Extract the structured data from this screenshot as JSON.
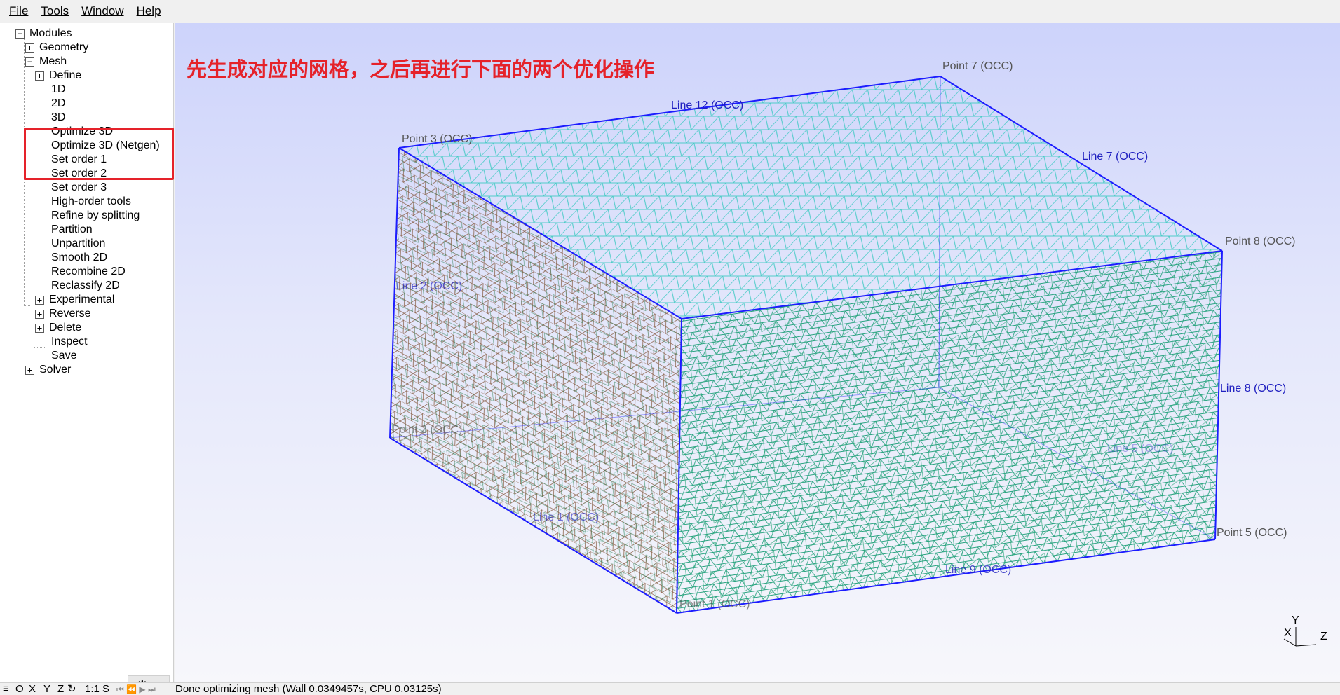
{
  "menu": {
    "file": "File",
    "tools": "Tools",
    "window": "Window",
    "help": "Help"
  },
  "tree": {
    "modules": "Modules",
    "geometry": "Geometry",
    "mesh": "Mesh",
    "define": "Define",
    "mesh_items": [
      "1D",
      "2D",
      "3D",
      "Optimize 3D",
      "Optimize 3D (Netgen)",
      "Set order 1",
      "Set order 2",
      "Set order 3",
      "High-order tools",
      "Refine by splitting",
      "Partition",
      "Unpartition",
      "Smooth 2D",
      "Recombine 2D",
      "Reclassify 2D"
    ],
    "experimental": "Experimental",
    "reverse": "Reverse",
    "delete": "Delete",
    "inspect": "Inspect",
    "save": "Save",
    "solver": "Solver",
    "expand_glyph": "+",
    "collapse_glyph": "−"
  },
  "annotation": {
    "text": "先生成对应的网格，之后再进行下面的两个优化操作",
    "color": "#e5222a"
  },
  "viewport": {
    "labels": {
      "point7": "Point 7 (OCC)",
      "point3": "Point 3 (OCC)",
      "point8": "Point 8 (OCC)",
      "point5": "Point 5 (OCC)",
      "point1": "Point 1 (OCC)",
      "point2": "Point 2 (OCC)",
      "line12": "Line 12 (OCC)",
      "line7": "Line 7 (OCC)",
      "line2": "Line 2 (OCC)",
      "line8": "Line 8 (OCC)",
      "line1": "Line 1 (OCC)",
      "line9": "Line 9 (OCC)",
      "line5": "Line 5 (OCC)"
    },
    "axes": {
      "x": "X",
      "y": "Y",
      "z": "Z"
    },
    "colors": {
      "edge": "#1c1cff",
      "mesh_front": "#1fa07a",
      "mesh_top": "#39c9c0",
      "mesh_left": "#7a4a2a",
      "label": "#555555",
      "line_label": "#2020c0"
    }
  },
  "settings": {
    "gear": "⚙",
    "arrow": "▽"
  },
  "status": {
    "menu_icon": "≡",
    "o": "O",
    "x": "X",
    "y": "Y",
    "z": "Z",
    "rotate": "↻",
    "scale": "1:1",
    "s": "S",
    "nav": "⏮ ⏪ ▶ ⏭",
    "message": "Done optimizing mesh (Wall 0.0349457s, CPU 0.03125s)"
  }
}
